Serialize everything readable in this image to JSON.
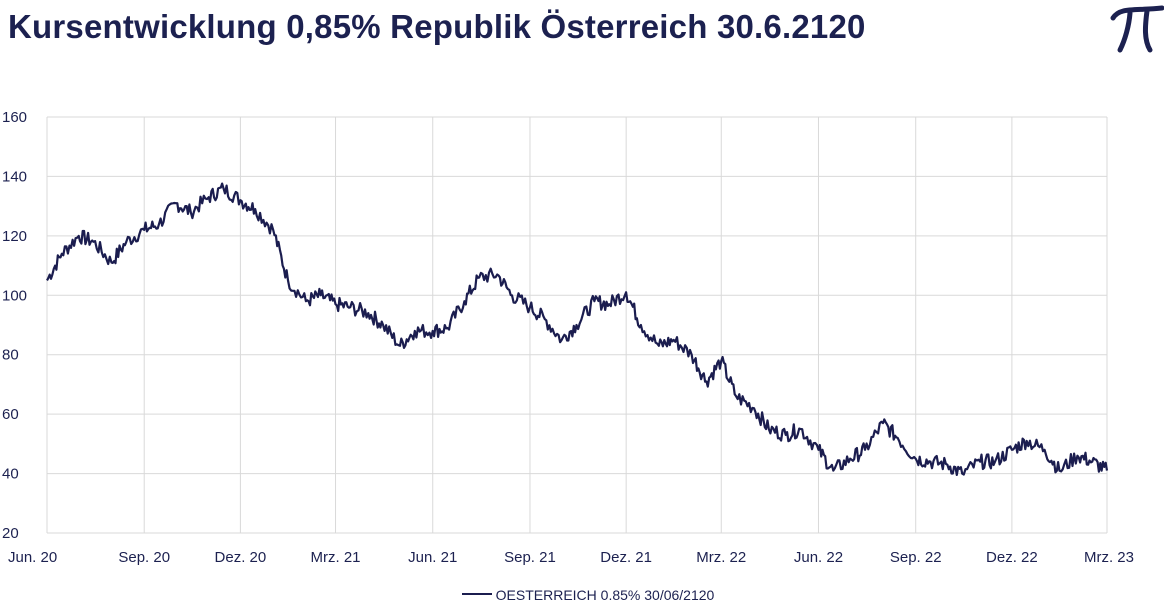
{
  "title": "Kursentwicklung 0,85% Republik Österreich 30.6.2120",
  "logo_icon": "pi-logo-icon",
  "colors": {
    "line": "#1b1d4f",
    "grid": "#d9d9d9",
    "text": "#1c2150"
  },
  "chart_data": {
    "type": "line",
    "title": "Kursentwicklung 0,85% Republik Österreich 30.6.2120",
    "xlabel": "",
    "ylabel": "",
    "ylim": [
      20,
      160
    ],
    "y_ticks": [
      "20",
      "40",
      "60",
      "80",
      "100",
      "120",
      "140",
      "160"
    ],
    "x_ticks": [
      "Jun. 20",
      "Sep. 20",
      "Dez. 20",
      "Mrz. 21",
      "Jun. 21",
      "Sep. 21",
      "Dez. 21",
      "Mrz. 22",
      "Jun. 22",
      "Sep. 22",
      "Dez. 22",
      "Mrz. 23"
    ],
    "grid": true,
    "legend_position": "bottom-center",
    "series": [
      {
        "name": "OESTERREICH 0.85% 30/06/2120",
        "x": [
          "2020-06-01",
          "2020-06-15",
          "2020-07-01",
          "2020-07-15",
          "2020-08-01",
          "2020-08-15",
          "2020-09-01",
          "2020-09-15",
          "2020-10-01",
          "2020-10-15",
          "2020-11-01",
          "2020-11-15",
          "2020-12-01",
          "2020-12-15",
          "2021-01-01",
          "2021-01-15",
          "2021-02-01",
          "2021-02-15",
          "2021-03-01",
          "2021-03-15",
          "2021-04-01",
          "2021-04-15",
          "2021-05-01",
          "2021-05-15",
          "2021-06-01",
          "2021-06-15",
          "2021-07-01",
          "2021-07-15",
          "2021-08-01",
          "2021-08-15",
          "2021-09-01",
          "2021-09-15",
          "2021-10-01",
          "2021-10-15",
          "2021-11-01",
          "2021-11-15",
          "2021-12-01",
          "2021-12-15",
          "2022-01-01",
          "2022-01-15",
          "2022-02-01",
          "2022-02-15",
          "2022-03-01",
          "2022-03-15",
          "2022-04-01",
          "2022-04-15",
          "2022-05-01",
          "2022-05-15",
          "2022-06-01",
          "2022-06-15",
          "2022-07-01",
          "2022-07-15",
          "2022-08-01",
          "2022-08-15",
          "2022-09-01",
          "2022-09-15",
          "2022-10-01",
          "2022-10-15",
          "2022-11-01",
          "2022-11-15",
          "2022-12-01",
          "2022-12-15",
          "2023-01-01",
          "2023-01-15",
          "2023-02-01",
          "2023-02-15",
          "2023-03-01"
        ],
        "values": [
          105,
          114,
          120,
          118,
          111,
          118,
          122,
          124,
          131,
          128,
          133,
          136,
          132,
          129,
          122,
          105,
          98,
          100,
          97,
          96,
          94,
          90,
          83,
          88,
          88,
          89,
          98,
          106,
          107,
          100,
          96,
          92,
          85,
          90,
          98,
          97,
          101,
          90,
          83,
          85,
          80,
          71,
          78,
          66,
          62,
          55,
          53,
          55,
          48,
          41,
          45,
          48,
          57,
          52,
          45,
          44,
          43,
          40,
          44,
          44,
          48,
          51,
          48,
          41,
          46,
          44,
          41
        ]
      }
    ]
  }
}
